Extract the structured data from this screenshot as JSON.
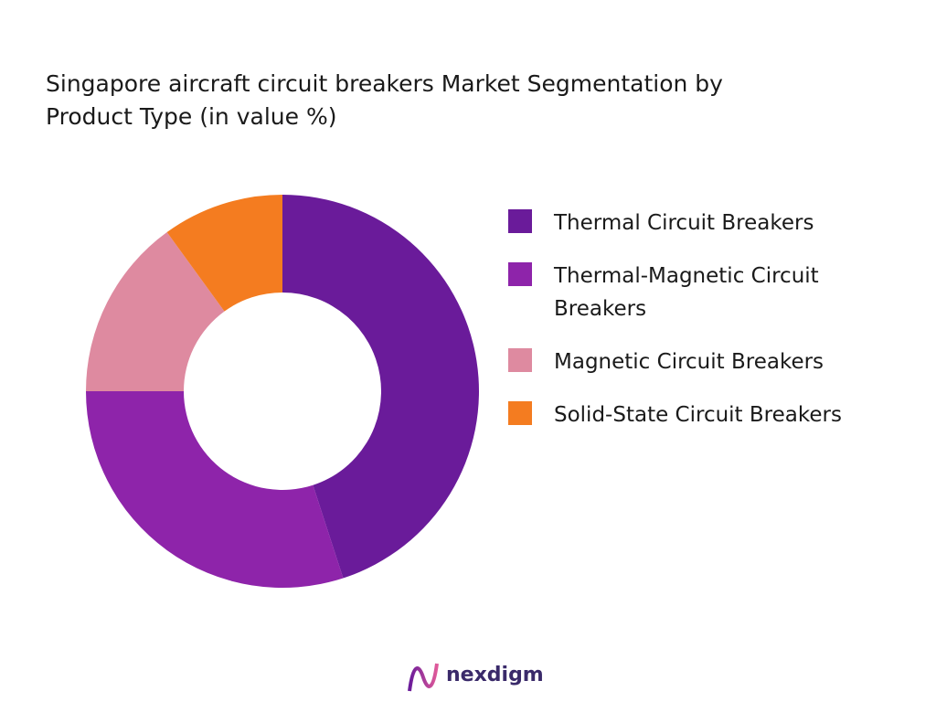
{
  "chart_data": {
    "type": "donut",
    "title": "Singapore aircraft circuit breakers Market Segmentation by Product Type (in value %)",
    "categories": [
      "Thermal Circuit Breakers",
      "Thermal-Magnetic Circuit Breakers",
      "Magnetic Circuit Breakers",
      "Solid-State Circuit Breakers"
    ],
    "values": [
      45,
      30,
      15,
      10
    ],
    "colors": [
      "#6a1b9a",
      "#8e24aa",
      "#de8aa0",
      "#f47c20"
    ],
    "legend": "right"
  },
  "footer": {
    "brand": "nexdigm"
  }
}
